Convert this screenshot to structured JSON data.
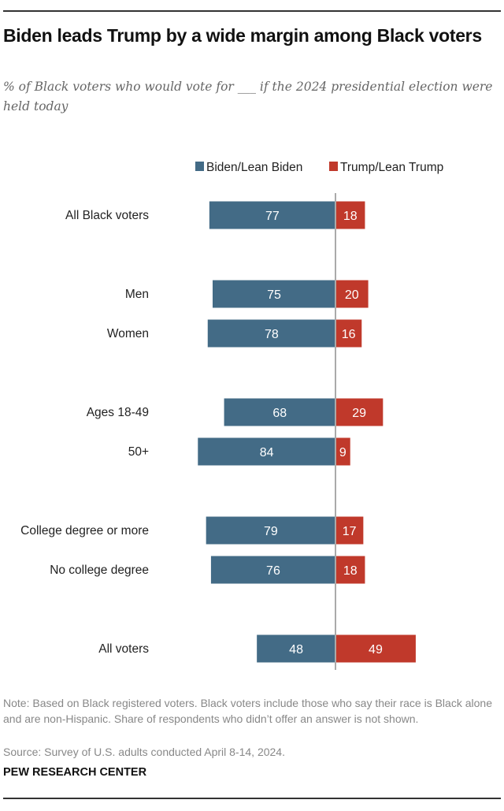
{
  "title": "Biden leads Trump by a wide margin among Black voters",
  "subtitle": "% of Black voters who would vote for ___ if the 2024 presidential election were held today",
  "note": "Note: Based on Black registered voters. Black voters include those who say their race is Black alone and are non-Hispanic. Share of respondents who didn’t offer an answer is not shown.",
  "source": "Source: Survey of U.S. adults conducted April 8-14, 2024.",
  "brand": "PEW RESEARCH CENTER",
  "chart_data": {
    "type": "bar",
    "orientation": "horizontal-diverging",
    "categories": [
      "All Black voters",
      "Men",
      "Women",
      "Ages 18-49",
      "50+",
      "College degree or more",
      "No college degree",
      "All voters"
    ],
    "series": [
      {
        "name": "Biden/Lean Biden",
        "color": "#436b86",
        "values": [
          77,
          75,
          78,
          68,
          84,
          79,
          76,
          48
        ]
      },
      {
        "name": "Trump/Lean Trump",
        "color": "#c0392b",
        "values": [
          18,
          20,
          16,
          29,
          9,
          17,
          18,
          49
        ]
      }
    ],
    "legend": "top",
    "grid": false
  }
}
